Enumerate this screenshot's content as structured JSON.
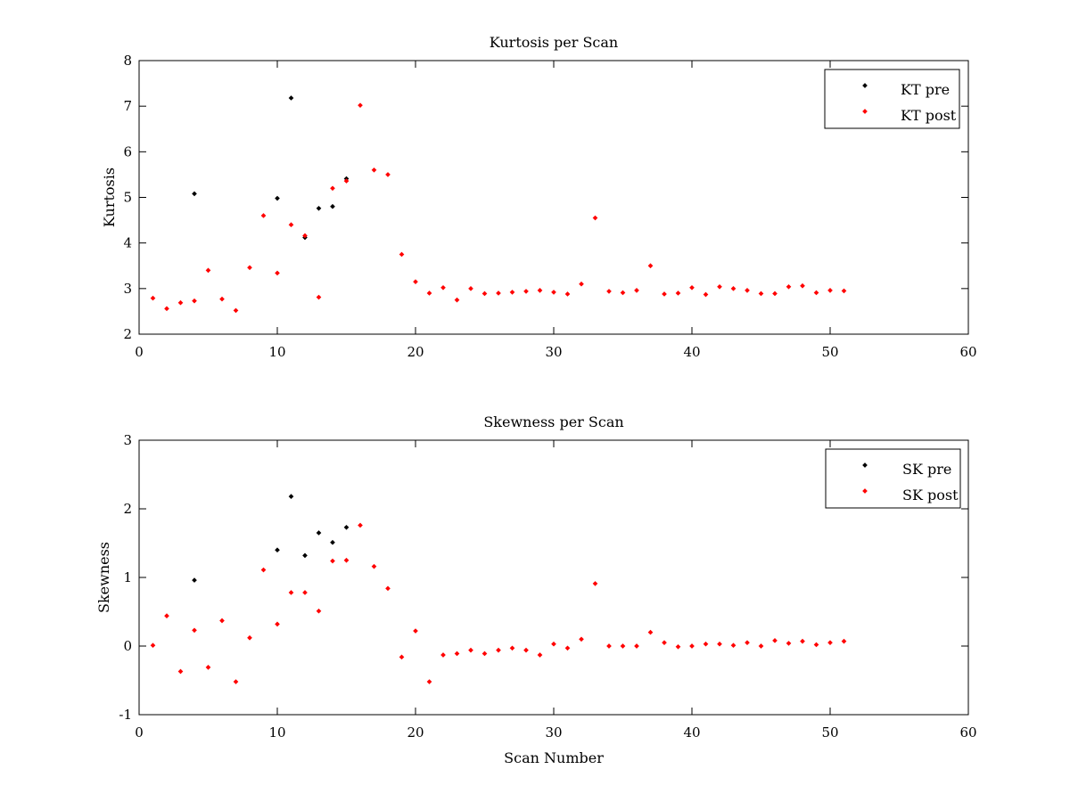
{
  "chart_data": [
    {
      "type": "scatter",
      "title": "Kurtosis per Scan",
      "xlabel": "",
      "ylabel": "Kurtosis",
      "xlim": [
        0,
        60
      ],
      "ylim": [
        2,
        8
      ],
      "xticks": [
        0,
        10,
        20,
        30,
        40,
        50,
        60
      ],
      "yticks": [
        2,
        3,
        4,
        5,
        6,
        7,
        8
      ],
      "grid": false,
      "legend_position": "top-right",
      "series": [
        {
          "name": "KT pre",
          "color": "#000000",
          "x": [
            4,
            10,
            11,
            12,
            13,
            14,
            15
          ],
          "y": [
            5.08,
            4.98,
            7.18,
            4.12,
            4.76,
            4.8,
            5.41
          ]
        },
        {
          "name": "KT post",
          "color": "#ff0000",
          "x": [
            1,
            2,
            3,
            4,
            5,
            6,
            7,
            8,
            9,
            10,
            11,
            12,
            13,
            14,
            15,
            16,
            17,
            18,
            19,
            20,
            21,
            22,
            23,
            24,
            25,
            26,
            27,
            28,
            29,
            30,
            31,
            32,
            33,
            34,
            35,
            36,
            37,
            38,
            39,
            40,
            41,
            42,
            43,
            44,
            45,
            46,
            47,
            48,
            49,
            50,
            51
          ],
          "y": [
            2.79,
            2.56,
            2.69,
            2.73,
            3.4,
            2.77,
            2.52,
            3.46,
            4.6,
            3.34,
            4.4,
            4.16,
            2.81,
            5.2,
            5.36,
            7.02,
            5.6,
            5.5,
            3.75,
            3.15,
            2.9,
            3.02,
            2.75,
            3.0,
            2.89,
            2.9,
            2.92,
            2.94,
            2.96,
            2.92,
            2.88,
            3.1,
            4.55,
            2.94,
            2.91,
            2.96,
            3.5,
            2.88,
            2.9,
            3.02,
            2.87,
            3.04,
            3.0,
            2.96,
            2.89,
            2.89,
            3.04,
            3.06,
            2.91,
            2.96,
            2.95
          ]
        }
      ]
    },
    {
      "type": "scatter",
      "title": "Skewness per Scan",
      "xlabel": "Scan Number",
      "ylabel": "Skewness",
      "xlim": [
        0,
        60
      ],
      "ylim": [
        -1,
        3
      ],
      "xticks": [
        0,
        10,
        20,
        30,
        40,
        50,
        60
      ],
      "yticks": [
        -1,
        0,
        1,
        2,
        3
      ],
      "grid": false,
      "legend_position": "top-right",
      "series": [
        {
          "name": "SK pre",
          "color": "#000000",
          "x": [
            4,
            10,
            11,
            12,
            13,
            14,
            15
          ],
          "y": [
            0.96,
            1.4,
            2.18,
            1.32,
            1.65,
            1.51,
            1.73
          ]
        },
        {
          "name": "SK post",
          "color": "#ff0000",
          "x": [
            1,
            2,
            3,
            4,
            5,
            6,
            7,
            8,
            9,
            10,
            11,
            12,
            13,
            14,
            15,
            16,
            17,
            18,
            19,
            20,
            21,
            22,
            23,
            24,
            25,
            26,
            27,
            28,
            29,
            30,
            31,
            32,
            33,
            34,
            35,
            36,
            37,
            38,
            39,
            40,
            41,
            42,
            43,
            44,
            45,
            46,
            47,
            48,
            49,
            50,
            51
          ],
          "y": [
            0.01,
            0.44,
            -0.37,
            0.23,
            -0.31,
            0.37,
            -0.52,
            0.12,
            1.11,
            0.32,
            0.78,
            0.78,
            0.51,
            1.24,
            1.25,
            1.76,
            1.16,
            0.84,
            -0.16,
            0.22,
            -0.52,
            -0.13,
            -0.11,
            -0.06,
            -0.11,
            -0.06,
            -0.03,
            -0.06,
            -0.13,
            0.03,
            -0.03,
            0.1,
            0.91,
            0.0,
            0.0,
            0.0,
            0.2,
            0.05,
            -0.01,
            0.0,
            0.03,
            0.03,
            0.01,
            0.05,
            0.0,
            0.08,
            0.04,
            0.07,
            0.02,
            0.05,
            0.07
          ]
        }
      ]
    }
  ]
}
